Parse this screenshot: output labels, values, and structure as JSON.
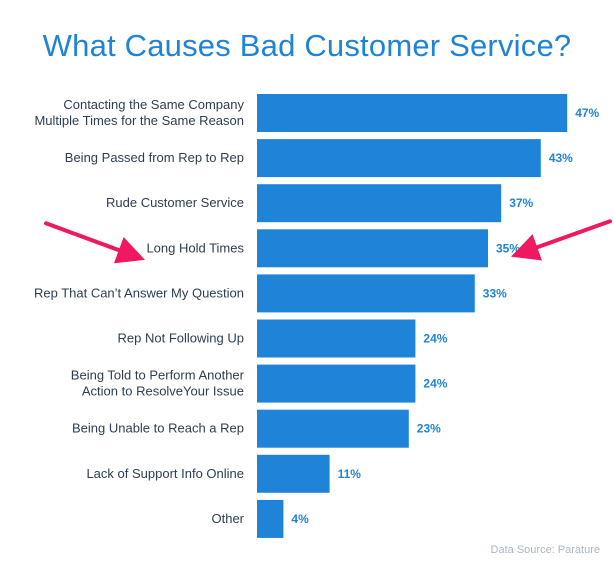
{
  "chart_data": {
    "type": "bar",
    "orientation": "horizontal",
    "title": "What Causes Bad Customer Service?",
    "source": "Data Source: Parature",
    "bar_color": "#1f84d8",
    "label_color": "#2d3e50",
    "value_color": "#1f84d8",
    "arrow_color": "#f0185e",
    "highlighted_category_index": 3,
    "categories": [
      [
        "Contacting the Same Company",
        "Multiple Times for the Same Reason"
      ],
      [
        "Being Passed from Rep to Rep"
      ],
      [
        "Rude Customer Service"
      ],
      [
        "Long Hold Times"
      ],
      [
        "Rep That Can’t Answer My Question"
      ],
      [
        "Rep Not Following Up"
      ],
      [
        "Being Told to Perform Another",
        "Action to ResolveYour Issue"
      ],
      [
        "Being Unable to Reach a Rep"
      ],
      [
        "Lack of Support Info Online"
      ],
      [
        "Other"
      ]
    ],
    "values": [
      47,
      43,
      37,
      35,
      33,
      24,
      24,
      23,
      11,
      4
    ],
    "value_labels": [
      "47%",
      "43%",
      "37%",
      "35%",
      "33%",
      "24%",
      "24%",
      "23%",
      "11%",
      "4%"
    ],
    "xlim": [
      0,
      50
    ],
    "grid": false,
    "legend": "none"
  }
}
